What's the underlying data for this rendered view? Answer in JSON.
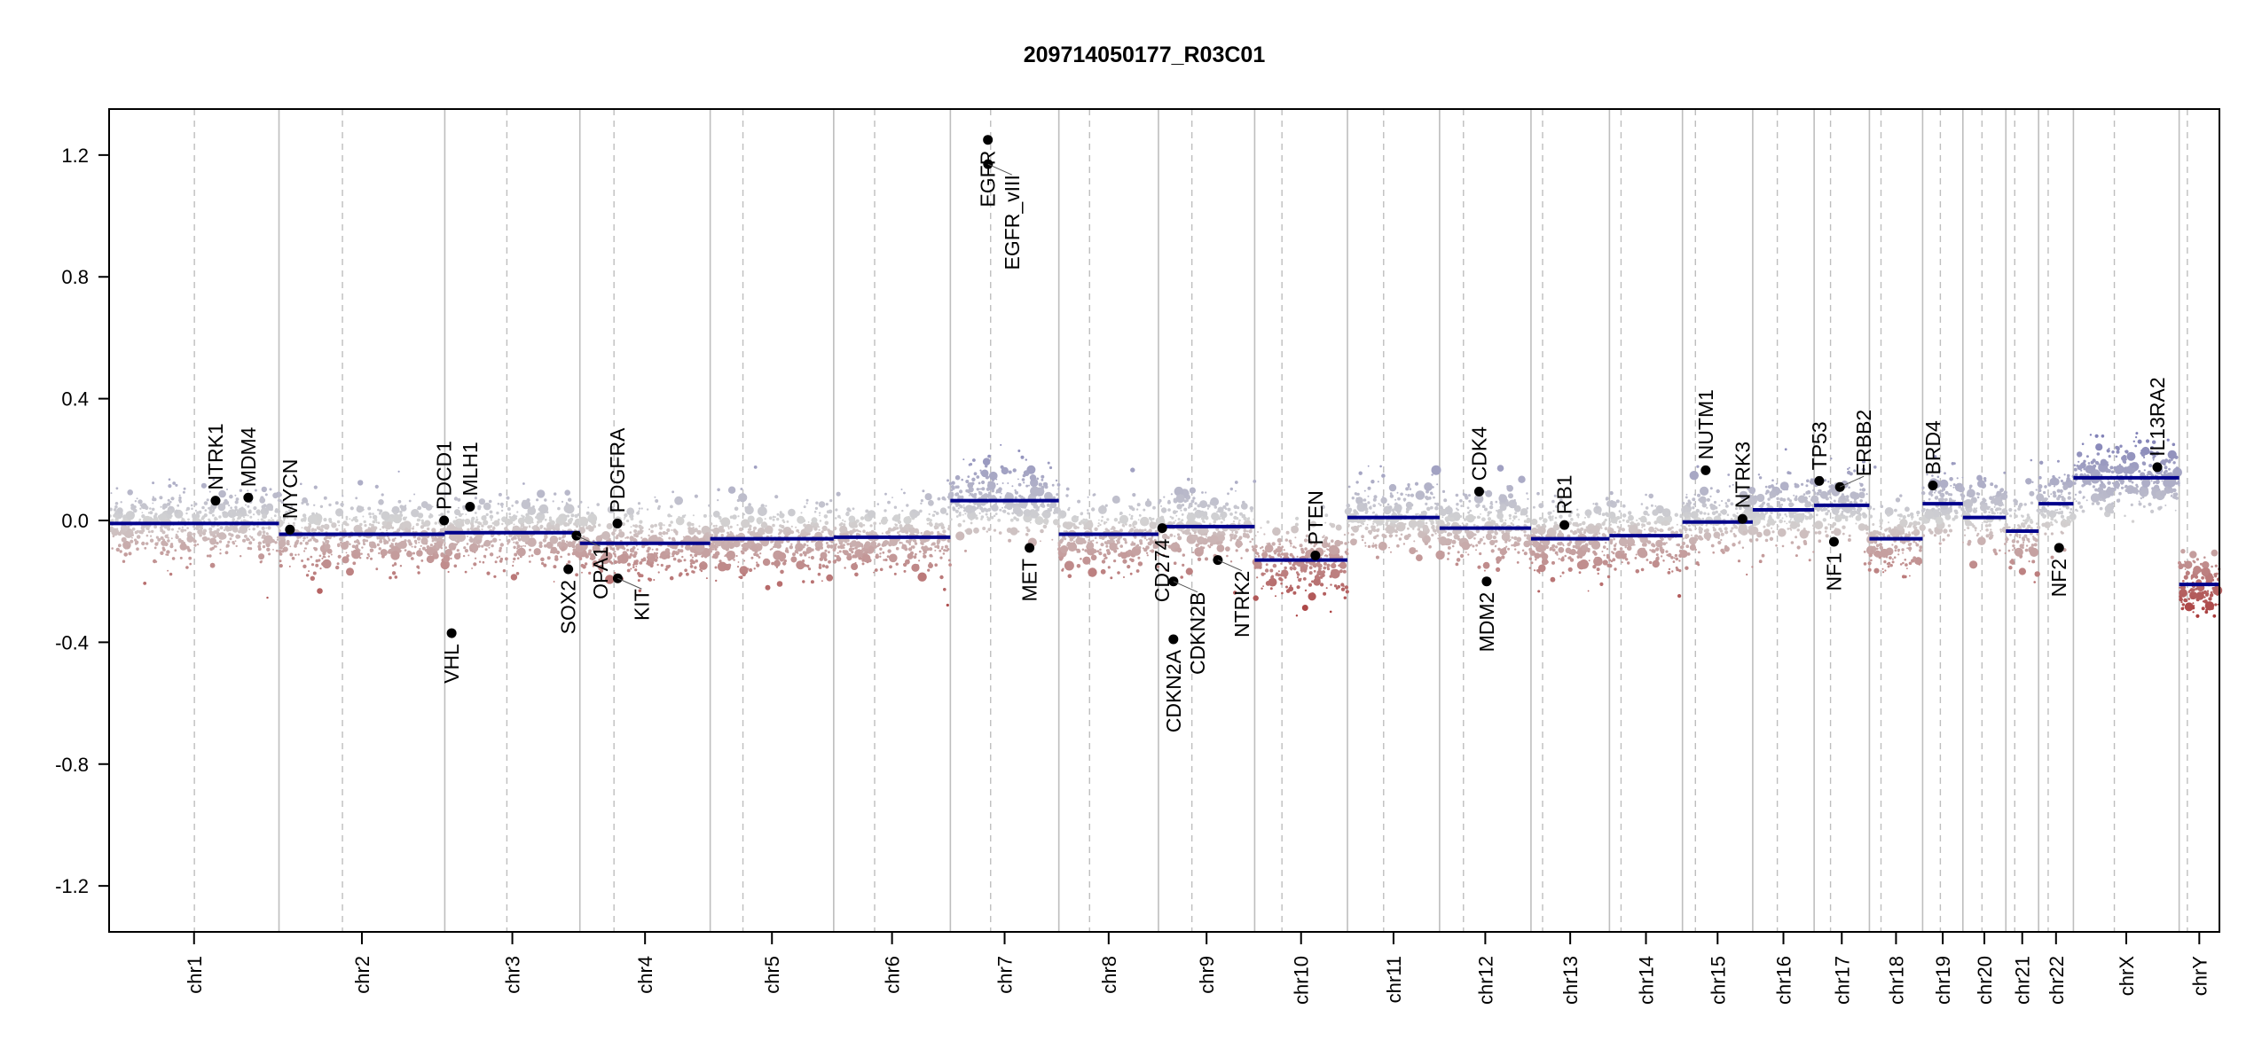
{
  "chart_data": {
    "type": "scatter",
    "title": "209714050177_R03C01",
    "xlabel": "",
    "ylabel": "",
    "ylim": [
      -1.351,
      1.351
    ],
    "y_ticks": [
      "-1.2",
      "-0.8",
      "-0.4",
      "0.0",
      "0.4",
      "0.8",
      "1.2"
    ],
    "grid": false,
    "colors": {
      "gain": "#6b6bb0",
      "neutral": "#d3d3d3",
      "loss": "#a52a2a",
      "segment": "#00008b",
      "gene": "#000000",
      "chrom_line": "#bebebe"
    },
    "chromosomes": [
      {
        "name": "chr1",
        "length_mb": 249,
        "centromere_mb": 125,
        "segment": -0.01
      },
      {
        "name": "chr2",
        "length_mb": 243,
        "centromere_mb": 93,
        "segment": -0.045
      },
      {
        "name": "chr3",
        "length_mb": 198,
        "centromere_mb": 91,
        "segment": -0.04
      },
      {
        "name": "chr4",
        "length_mb": 191,
        "centromere_mb": 50,
        "segment": -0.075
      },
      {
        "name": "chr5",
        "length_mb": 181,
        "centromere_mb": 48,
        "segment": -0.06
      },
      {
        "name": "chr6",
        "length_mb": 171,
        "centromere_mb": 60,
        "segment": -0.055
      },
      {
        "name": "chr7",
        "length_mb": 159,
        "centromere_mb": 59,
        "segment": 0.065
      },
      {
        "name": "chr8",
        "length_mb": 146,
        "centromere_mb": 45,
        "segment": -0.045
      },
      {
        "name": "chr9",
        "length_mb": 141,
        "centromere_mb": 49,
        "segment": -0.02
      },
      {
        "name": "chr10",
        "length_mb": 136,
        "centromere_mb": 40,
        "segment": -0.13
      },
      {
        "name": "chr11",
        "length_mb": 135,
        "centromere_mb": 53,
        "segment": 0.01
      },
      {
        "name": "chr12",
        "length_mb": 134,
        "centromere_mb": 35,
        "segment": -0.025
      },
      {
        "name": "chr13",
        "length_mb": 115,
        "centromere_mb": 17,
        "segment": -0.06
      },
      {
        "name": "chr14",
        "length_mb": 107,
        "centromere_mb": 17,
        "segment": -0.05
      },
      {
        "name": "chr15",
        "length_mb": 103,
        "centromere_mb": 19,
        "segment": -0.005
      },
      {
        "name": "chr16",
        "length_mb": 90,
        "centromere_mb": 36,
        "segment": 0.035
      },
      {
        "name": "chr17",
        "length_mb": 81,
        "centromere_mb": 24,
        "segment": 0.05
      },
      {
        "name": "chr18",
        "length_mb": 78,
        "centromere_mb": 17,
        "segment": -0.06
      },
      {
        "name": "chr19",
        "length_mb": 59,
        "centromere_mb": 26,
        "segment": 0.055
      },
      {
        "name": "chr20",
        "length_mb": 63,
        "centromere_mb": 28,
        "segment": 0.01
      },
      {
        "name": "chr21",
        "length_mb": 48,
        "centromere_mb": 13,
        "segment": -0.035
      },
      {
        "name": "chr22",
        "length_mb": 51,
        "centromere_mb": 14,
        "segment": 0.055
      },
      {
        "name": "chrX",
        "length_mb": 155,
        "centromere_mb": 60,
        "segment": 0.14
      },
      {
        "name": "chrY",
        "length_mb": 59,
        "centromere_mb": 12,
        "segment": -0.21
      }
    ],
    "genes": [
      {
        "name": "NTRK1",
        "chr": "chr1",
        "pos_mb": 156,
        "value": 0.065
      },
      {
        "name": "MDM4",
        "chr": "chr1",
        "pos_mb": 204,
        "value": 0.075
      },
      {
        "name": "MYCN",
        "chr": "chr2",
        "pos_mb": 16,
        "value": -0.03
      },
      {
        "name": "PDCD1",
        "chr": "chr2",
        "pos_mb": 242,
        "value": 0.0
      },
      {
        "name": "VHL",
        "chr": "chr3",
        "pos_mb": 10,
        "value": -0.37
      },
      {
        "name": "MLH1",
        "chr": "chr3",
        "pos_mb": 37,
        "value": 0.045
      },
      {
        "name": "SOX2",
        "chr": "chr3",
        "pos_mb": 181,
        "value": -0.16
      },
      {
        "name": "OPA1",
        "chr": "chr3",
        "pos_mb": 193,
        "value": -0.05
      },
      {
        "name": "PDGFRA",
        "chr": "chr4",
        "pos_mb": 55,
        "value": -0.01
      },
      {
        "name": "KIT",
        "chr": "chr4",
        "pos_mb": 55.5,
        "value": -0.19
      },
      {
        "name": "EGFR",
        "chr": "chr7",
        "pos_mb": 55,
        "value": 1.25
      },
      {
        "name": "EGFR_vIII",
        "chr": "chr7",
        "pos_mb": 55.2,
        "value": 1.17
      },
      {
        "name": "MET",
        "chr": "chr7",
        "pos_mb": 116,
        "value": -0.09
      },
      {
        "name": "CD274",
        "chr": "chr9",
        "pos_mb": 5.5,
        "value": -0.025
      },
      {
        "name": "CDKN2A",
        "chr": "chr9",
        "pos_mb": 21.9,
        "value": -0.39
      },
      {
        "name": "CDKN2B",
        "chr": "chr9",
        "pos_mb": 22.0,
        "value": -0.2
      },
      {
        "name": "NTRK2",
        "chr": "chr9",
        "pos_mb": 87,
        "value": -0.13
      },
      {
        "name": "PTEN",
        "chr": "chr10",
        "pos_mb": 89,
        "value": -0.115
      },
      {
        "name": "CDK4",
        "chr": "chr12",
        "pos_mb": 58,
        "value": 0.095
      },
      {
        "name": "MDM2",
        "chr": "chr12",
        "pos_mb": 69,
        "value": -0.2
      },
      {
        "name": "RB1",
        "chr": "chr13",
        "pos_mb": 49,
        "value": -0.015
      },
      {
        "name": "NUTM1",
        "chr": "chr15",
        "pos_mb": 34,
        "value": 0.165
      },
      {
        "name": "NTRK3",
        "chr": "chr15",
        "pos_mb": 88,
        "value": 0.005
      },
      {
        "name": "TP53",
        "chr": "chr17",
        "pos_mb": 7.5,
        "value": 0.13
      },
      {
        "name": "NF1",
        "chr": "chr17",
        "pos_mb": 29,
        "value": -0.07
      },
      {
        "name": "ERBB2",
        "chr": "chr17",
        "pos_mb": 37.8,
        "value": 0.11
      },
      {
        "name": "BRD4",
        "chr": "chr19",
        "pos_mb": 15,
        "value": 0.115
      },
      {
        "name": "NF2",
        "chr": "chr22",
        "pos_mb": 30,
        "value": -0.09
      },
      {
        "name": "IL13RA2",
        "chr": "chrX",
        "pos_mb": 123,
        "value": 0.175
      }
    ]
  }
}
